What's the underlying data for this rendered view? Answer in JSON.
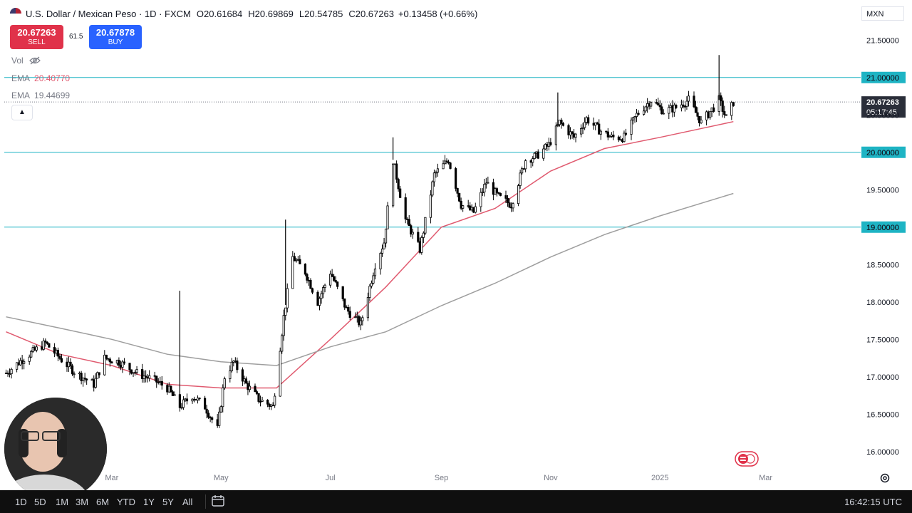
{
  "header": {
    "symbol": "U.S. Dollar / Mexican Peso · 1D · FXCM",
    "open_label": "O",
    "open": "20.61684",
    "high_label": "H",
    "high": "20.69869",
    "low_label": "L",
    "low": "20.54785",
    "close_label": "C",
    "close": "20.67263",
    "change": "+0.13458 (+0.66%)"
  },
  "trade": {
    "sell_price": "20.67263",
    "sell_label": "SELL",
    "spread": "61.5",
    "buy_price": "20.67878",
    "buy_label": "BUY"
  },
  "indicators": {
    "vol_label": "Vol",
    "ema1_label": "EMA",
    "ema1_value": "20.40770",
    "ema1_color": "#e05a6f",
    "ema2_label": "EMA",
    "ema2_value": "19.44699",
    "ema2_color": "#9e9e9e"
  },
  "currency": "MXN",
  "last_price_tag": {
    "price": "20.67263",
    "countdown": "05:17:45"
  },
  "bottom_bar": {
    "ranges": [
      "1D",
      "5D",
      "1M",
      "3M",
      "6M",
      "YTD",
      "1Y",
      "5Y",
      "All"
    ],
    "clock": "16:42:15 UTC"
  },
  "colors": {
    "hline": "#1eb4c4",
    "tag_bg": "#1eb4c4",
    "last_bg": "#2a2e39",
    "candle": "#000000"
  },
  "chart_data": {
    "type": "candlestick",
    "title": "U.S. Dollar / Mexican Peso · 1D · FXCM",
    "ylim": [
      15.75,
      21.75
    ],
    "y_ticks": [
      16.0,
      16.5,
      17.0,
      17.5,
      18.0,
      18.5,
      19.0,
      19.5,
      20.0,
      20.5,
      21.0,
      21.5
    ],
    "x_ticks": [
      "Mar",
      "May",
      "Jul",
      "Sep",
      "Nov",
      "2025",
      "Mar"
    ],
    "horizontal_lines": [
      21.0,
      20.0,
      19.0
    ],
    "last_price": 20.67263,
    "close_trace": [
      [
        "2024-01-02",
        17.05
      ],
      [
        "2024-01-12",
        17.25
      ],
      [
        "2024-01-24",
        17.45
      ],
      [
        "2024-02-01",
        17.25
      ],
      [
        "2024-02-10",
        17.05
      ],
      [
        "2024-02-20",
        16.9
      ],
      [
        "2024-02-26",
        17.25
      ],
      [
        "2024-03-05",
        17.2
      ],
      [
        "2024-03-15",
        17.05
      ],
      [
        "2024-03-25",
        16.95
      ],
      [
        "2024-04-01",
        16.85
      ],
      [
        "2024-04-08",
        16.6
      ],
      [
        "2024-04-15",
        16.75
      ],
      [
        "2024-04-22",
        16.6
      ],
      [
        "2024-04-29",
        16.3
      ],
      [
        "2024-05-03",
        17.0
      ],
      [
        "2024-05-08",
        17.2
      ],
      [
        "2024-05-15",
        16.9
      ],
      [
        "2024-05-22",
        16.7
      ],
      [
        "2024-05-30",
        16.6
      ],
      [
        "2024-06-05",
        17.8
      ],
      [
        "2024-06-10",
        18.6
      ],
      [
        "2024-06-17",
        18.4
      ],
      [
        "2024-06-24",
        18.0
      ],
      [
        "2024-07-01",
        18.4
      ],
      [
        "2024-07-10",
        17.9
      ],
      [
        "2024-07-18",
        17.7
      ],
      [
        "2024-07-26",
        18.5
      ],
      [
        "2024-07-31",
        18.8
      ],
      [
        "2024-08-05",
        19.9
      ],
      [
        "2024-08-12",
        19.1
      ],
      [
        "2024-08-20",
        18.7
      ],
      [
        "2024-08-28",
        19.7
      ],
      [
        "2024-09-05",
        19.9
      ],
      [
        "2024-09-12",
        19.3
      ],
      [
        "2024-09-19",
        19.2
      ],
      [
        "2024-09-26",
        19.6
      ],
      [
        "2024-10-03",
        19.4
      ],
      [
        "2024-10-10",
        19.3
      ],
      [
        "2024-10-18",
        19.9
      ],
      [
        "2024-10-24",
        19.95
      ],
      [
        "2024-10-31",
        20.1
      ],
      [
        "2024-11-06",
        20.4
      ],
      [
        "2024-11-14",
        20.2
      ],
      [
        "2024-11-21",
        20.45
      ],
      [
        "2024-11-28",
        20.3
      ],
      [
        "2024-12-05",
        20.2
      ],
      [
        "2024-12-12",
        20.2
      ],
      [
        "2024-12-19",
        20.5
      ],
      [
        "2024-12-27",
        20.7
      ],
      [
        "2025-01-03",
        20.55
      ],
      [
        "2025-01-10",
        20.6
      ],
      [
        "2025-01-17",
        20.7
      ],
      [
        "2025-01-24",
        20.4
      ],
      [
        "2025-01-31",
        20.6
      ],
      [
        "2025-02-03",
        20.7
      ],
      [
        "2025-02-07",
        20.45
      ],
      [
        "2025-02-11",
        20.67
      ]
    ],
    "series": [
      {
        "name": "EMA",
        "value": 20.4077,
        "values": [
          [
            "2024-01-02",
            17.6
          ],
          [
            "2024-02-01",
            17.3
          ],
          [
            "2024-03-01",
            17.15
          ],
          [
            "2024-04-01",
            16.9
          ],
          [
            "2024-05-01",
            16.85
          ],
          [
            "2024-06-01",
            16.85
          ],
          [
            "2024-07-01",
            17.5
          ],
          [
            "2024-08-01",
            18.2
          ],
          [
            "2024-09-01",
            19.0
          ],
          [
            "2024-10-01",
            19.25
          ],
          [
            "2024-11-01",
            19.75
          ],
          [
            "2024-12-01",
            20.05
          ],
          [
            "2025-01-01",
            20.2
          ],
          [
            "2025-02-11",
            20.41
          ]
        ]
      },
      {
        "name": "EMA",
        "value": 19.44699,
        "values": [
          [
            "2024-01-02",
            17.8
          ],
          [
            "2024-02-01",
            17.65
          ],
          [
            "2024-03-01",
            17.5
          ],
          [
            "2024-04-01",
            17.3
          ],
          [
            "2024-05-01",
            17.2
          ],
          [
            "2024-06-01",
            17.15
          ],
          [
            "2024-07-01",
            17.4
          ],
          [
            "2024-08-01",
            17.6
          ],
          [
            "2024-09-01",
            17.95
          ],
          [
            "2024-10-01",
            18.25
          ],
          [
            "2024-11-01",
            18.6
          ],
          [
            "2024-12-01",
            18.9
          ],
          [
            "2025-01-01",
            19.15
          ],
          [
            "2025-02-11",
            19.45
          ]
        ]
      }
    ],
    "spikes": [
      [
        "2024-04-08",
        18.15
      ],
      [
        "2024-06-06",
        19.1
      ],
      [
        "2024-08-05",
        20.2
      ],
      [
        "2024-11-05",
        20.8
      ],
      [
        "2025-02-03",
        21.3
      ]
    ]
  }
}
